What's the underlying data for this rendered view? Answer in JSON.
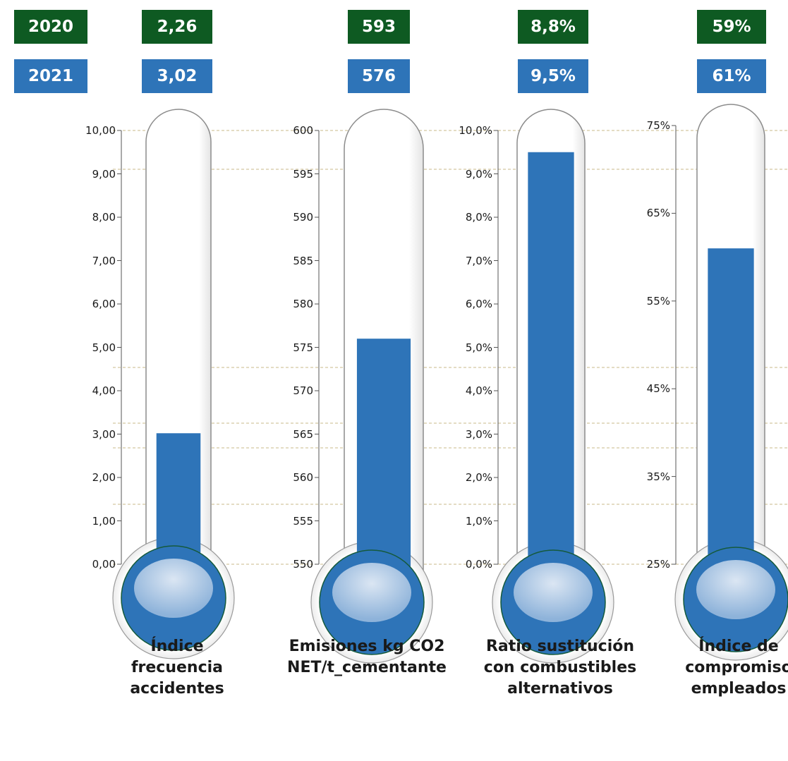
{
  "colors": {
    "year_2020_badge": "#0e5a22",
    "year_2021_badge": "#2e74b8",
    "mercury": "#2e74b8",
    "bulb_outline": "#155a3c",
    "gridline": "#c8b98a"
  },
  "legend": {
    "year_2020": "2020",
    "year_2021": "2021"
  },
  "gauges": [
    {
      "title": "Índice\nfrecuencia\naccidentes",
      "value_2020_label": "2,26",
      "value_2021_label": "3,02",
      "ticks": [
        "10,00",
        "9,00",
        "8,00",
        "7,00",
        "6,00",
        "5,00",
        "4,00",
        "3,00",
        "2,00",
        "1,00",
        "0,00"
      ]
    },
    {
      "title": "Emisiones kg CO2\nNET/t_cementante",
      "value_2020_label": "593",
      "value_2021_label": "576",
      "ticks": [
        "600",
        "595",
        "590",
        "585",
        "580",
        "575",
        "570",
        "565",
        "560",
        "555",
        "550"
      ]
    },
    {
      "title": "Ratio sustitución\ncon combustibles\nalternativos",
      "value_2020_label": "8,8%",
      "value_2021_label": "9,5%",
      "ticks": [
        "10,0%",
        "9,0%",
        "8,0%",
        "7,0%",
        "6,0%",
        "5,0%",
        "4,0%",
        "3,0%",
        "2,0%",
        "1,0%",
        "0,0%"
      ]
    },
    {
      "title": "Índice de\ncompromiso\nempleados",
      "value_2020_label": "59%",
      "value_2021_label": "61%",
      "ticks": [
        "75%",
        "65%",
        "55%",
        "45%",
        "35%",
        "25%"
      ]
    }
  ],
  "chart_data": [
    {
      "type": "bar",
      "title": "Índice frecuencia accidentes",
      "categories": [
        "2020",
        "2021"
      ],
      "values": [
        2.26,
        3.02
      ],
      "ylim": [
        0,
        10
      ],
      "displayed_value": 3.02,
      "grid": true
    },
    {
      "type": "bar",
      "title": "Emisiones kg CO2 NET/t_cementante",
      "categories": [
        "2020",
        "2021"
      ],
      "values": [
        593,
        576
      ],
      "ylim": [
        550,
        600
      ],
      "displayed_value": 576,
      "grid": true
    },
    {
      "type": "bar",
      "title": "Ratio sustitución con combustibles alternativos",
      "categories": [
        "2020",
        "2021"
      ],
      "values": [
        8.8,
        9.5
      ],
      "ylim": [
        0,
        10
      ],
      "displayed_value": 9.5,
      "grid": true
    },
    {
      "type": "bar",
      "title": "Índice de compromiso empleados",
      "categories": [
        "2020",
        "2021"
      ],
      "values": [
        59,
        61
      ],
      "ylim": [
        25,
        75
      ],
      "displayed_value": 61,
      "grid": true
    }
  ]
}
